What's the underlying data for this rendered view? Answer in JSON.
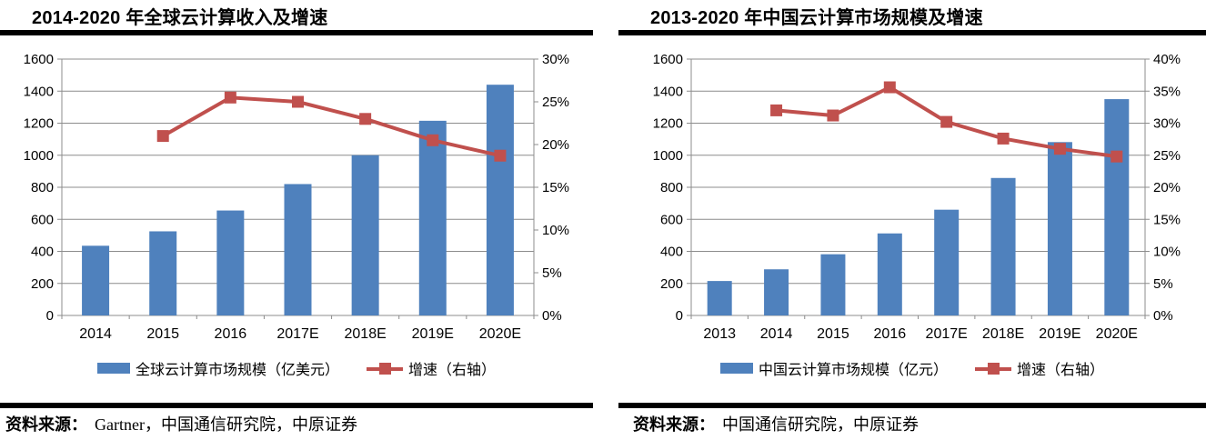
{
  "colors": {
    "bar_blue": "#4F81BD",
    "line_red": "#C0504D",
    "grid_gray": "#8C8C8C",
    "rule_black": "#000000",
    "background": "#ffffff"
  },
  "chart_data": [
    {
      "type": "bar+line",
      "title": "2014-2020 年全球云计算收入及增速",
      "categories": [
        "2014",
        "2015",
        "2016",
        "2017E",
        "2018E",
        "2019E",
        "2020E"
      ],
      "series": [
        {
          "name": "全球云计算市场规模（亿美元）",
          "type": "bar",
          "axis": "left",
          "color": "#4F81BD",
          "values": [
            435,
            525,
            655,
            820,
            1000,
            1215,
            1440
          ]
        },
        {
          "name": "增速（右轴）",
          "type": "line",
          "axis": "right",
          "color": "#C0504D",
          "values": [
            null,
            21.0,
            25.5,
            25.0,
            23.0,
            20.5,
            18.7
          ]
        }
      ],
      "left_axis": {
        "min": 0,
        "max": 1600,
        "step": 200
      },
      "right_axis": {
        "min": 0,
        "max": 30,
        "step": 5,
        "suffix": "%"
      },
      "grid": true,
      "legend_position": "bottom",
      "source_label": "资料来源：",
      "source_text": "Gartner，中国通信研究院，中原证券"
    },
    {
      "type": "bar+line",
      "title": "2013-2020 年中国云计算市场规模及增速",
      "categories": [
        "2013",
        "2014",
        "2015",
        "2016",
        "2017E",
        "2018E",
        "2019E",
        "2020E"
      ],
      "series": [
        {
          "name": "中国云计算市场规模（亿元）",
          "type": "bar",
          "axis": "left",
          "color": "#4F81BD",
          "values": [
            215,
            288,
            382,
            512,
            660,
            858,
            1082,
            1350
          ]
        },
        {
          "name": "增速（右轴）",
          "type": "line",
          "axis": "right",
          "color": "#C0504D",
          "values": [
            null,
            32.0,
            31.2,
            35.6,
            30.2,
            27.6,
            26.0,
            24.8
          ]
        }
      ],
      "left_axis": {
        "min": 0,
        "max": 1600,
        "step": 200
      },
      "right_axis": {
        "min": 0,
        "max": 40,
        "step": 5,
        "suffix": "%"
      },
      "grid": true,
      "legend_position": "bottom",
      "source_label": "资料来源：",
      "source_text": "中国通信研究院，中原证券"
    }
  ]
}
